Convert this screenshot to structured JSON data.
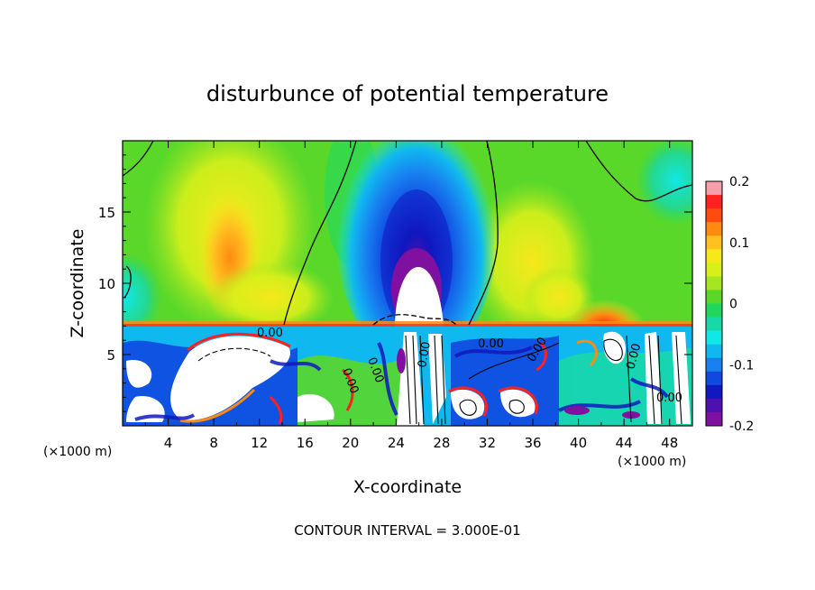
{
  "chart_data": {
    "type": "heatmap",
    "title": "disturbunce of potential temperature",
    "xlabel": "X-coordinate",
    "ylabel": "Z-coordinate",
    "x_unit_label": "(×1000 m)",
    "x_unit_label_right": "(×1000 m)",
    "x_ticks": [
      4,
      8,
      12,
      16,
      20,
      24,
      28,
      32,
      36,
      40,
      44,
      48
    ],
    "y_ticks": [
      5,
      10,
      15
    ],
    "xlim": [
      0,
      50
    ],
    "ylim": [
      0,
      20
    ],
    "colorbar": {
      "ticks": [
        "0.2",
        "0.1",
        "0",
        "-0.1",
        "-0.2"
      ],
      "range": [
        -0.2,
        0.2
      ],
      "colors": [
        "#f5a0a8",
        "#ff2020",
        "#ff4a10",
        "#ff8a10",
        "#ffc020",
        "#f7e81a",
        "#d8f01a",
        "#a4e620",
        "#5ad82a",
        "#20d860",
        "#18d8a8",
        "#10e8e8",
        "#10b8f0",
        "#1880f0",
        "#1048e0",
        "#1018c0",
        "#5010b0",
        "#8010a0"
      ]
    },
    "contour_labels": [
      "0.00",
      "0.00",
      "0.00",
      "0.00",
      "0.00",
      "0.00",
      "0.00",
      "0.00"
    ],
    "footer": "CONTOUR INTERVAL = 3.000E-01"
  }
}
